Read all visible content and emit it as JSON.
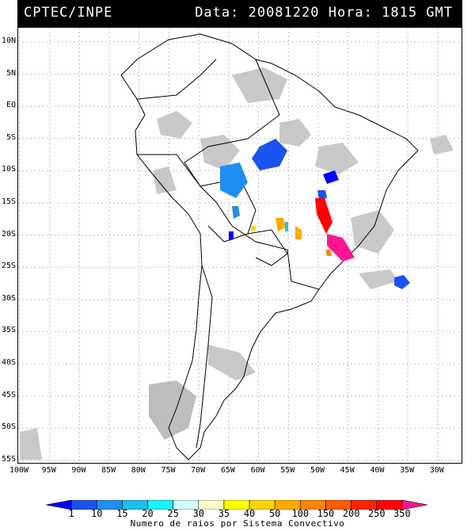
{
  "header": {
    "left": "CPTEC/INPE",
    "right": "Data: 20081220 Hora: 1815 GMT"
  },
  "lat_labels": [
    "10N",
    "5N",
    "EQ",
    "5S",
    "10S",
    "15S",
    "20S",
    "25S",
    "30S",
    "35S",
    "40S",
    "45S",
    "50S",
    "55S"
  ],
  "lon_labels": [
    "100W",
    "95W",
    "90W",
    "85W",
    "80W",
    "75W",
    "70W",
    "65W",
    "60W",
    "55W",
    "50W",
    "45W",
    "40W",
    "35W",
    "30W"
  ],
  "colorbar": {
    "labels": [
      "1",
      "10",
      "15",
      "20",
      "25",
      "30",
      "35",
      "40",
      "50",
      "100",
      "150",
      "200",
      "250",
      "350"
    ],
    "colors": [
      "#0000ff",
      "#1a52ee",
      "#1f8ef0",
      "#19c0ee",
      "#19f4ff",
      "#d4fbff",
      "#fffdc8",
      "#ffff00",
      "#ffd400",
      "#ffaa00",
      "#ff8400",
      "#ff5c00",
      "#ff2400",
      "#ff0000",
      "#ff1493"
    ],
    "caption": "Numero de raios por Sistema Convectivo"
  },
  "colors": {
    "cloud": "#c8c8c8",
    "grid": "#bdbdbd",
    "border": "#000000"
  }
}
